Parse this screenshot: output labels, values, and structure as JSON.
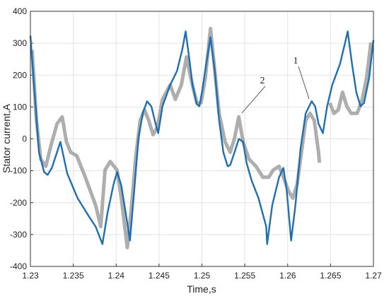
{
  "chart_data": {
    "type": "line",
    "xlabel": "Time,s",
    "ylabel": "Stator current,A",
    "xlim": [
      1.23,
      1.27
    ],
    "xticks": [
      1.23,
      1.235,
      1.24,
      1.245,
      1.25,
      1.255,
      1.26,
      1.265,
      1.27
    ],
    "ylim": [
      -400,
      400
    ],
    "yticks": [
      -400,
      -300,
      -200,
      -100,
      0,
      100,
      200,
      300,
      400
    ],
    "grid": true,
    "annotations": [
      "1",
      "2"
    ],
    "series": [
      {
        "color": "#a0a0a0",
        "x": [
          1.2302,
          1.2307,
          1.2312,
          1.2318,
          1.2324,
          1.2331,
          1.2337,
          1.2342,
          1.2347,
          1.2354,
          1.2364,
          1.2376,
          1.2382,
          1.2387,
          1.2393,
          1.2401,
          1.2406,
          1.2413,
          1.2418,
          1.2423,
          1.2428,
          1.2433,
          1.2438,
          1.2443,
          1.2448,
          1.2454,
          1.2463,
          1.2469,
          1.2476,
          1.2482,
          1.2487,
          1.2494,
          1.2499,
          1.2504,
          1.251,
          1.2515,
          1.252,
          1.2527,
          1.2533,
          1.2538,
          1.2543,
          1.2548,
          1.2555,
          1.2563,
          1.2571,
          1.2578,
          1.2583,
          1.259,
          1.2595,
          1.2601,
          1.2606,
          1.2611,
          1.2616,
          1.2621,
          1.2626,
          1.2631,
          1.2636,
          1.2637,
          1.2645,
          1.2649,
          1.2654,
          1.2659,
          1.2664,
          1.2669,
          1.2674,
          1.2681,
          1.2687,
          1.2692,
          1.2697
        ],
        "values": [
          279,
          58,
          -64,
          -86,
          -20,
          47,
          69,
          -9,
          -42,
          -53,
          -120,
          -208,
          -275,
          -98,
          -71,
          -98,
          -186,
          -341,
          -208,
          -53,
          58,
          91,
          58,
          13,
          36,
          124,
          169,
          124,
          169,
          257,
          191,
          113,
          113,
          191,
          346,
          213,
          80,
          -9,
          -42,
          2,
          69,
          -9,
          -64,
          -86,
          -120,
          -120,
          -98,
          -86,
          -120,
          -164,
          -186,
          -142,
          -42,
          58,
          80,
          58,
          -42,
          -75,
          null,
          113,
          80,
          91,
          146,
          102,
          80,
          80,
          124,
          191,
          302
        ]
      },
      {
        "color": "#1f6fb0",
        "x": [
          1.23,
          1.2306,
          1.231,
          1.2316,
          1.232,
          1.2325,
          1.2331,
          1.2335,
          1.2343,
          1.2355,
          1.2368,
          1.2376,
          1.2384,
          1.239,
          1.2397,
          1.2401,
          1.2406,
          1.2411,
          1.2416,
          1.2421,
          1.2426,
          1.2431,
          1.2436,
          1.2441,
          1.2446,
          1.2449,
          1.2454,
          1.2463,
          1.2471,
          1.2477,
          1.2481,
          1.2485,
          1.2489,
          1.2494,
          1.2497,
          1.25,
          1.2505,
          1.251,
          1.2515,
          1.252,
          1.2525,
          1.253,
          1.2533,
          1.2538,
          1.2543,
          1.2548,
          1.2552,
          1.2558,
          1.2566,
          1.2575,
          1.2576,
          1.2582,
          1.259,
          1.2595,
          1.2599,
          1.2604,
          1.2609,
          1.2615,
          1.2621,
          1.2628,
          1.2632,
          1.2636,
          1.2641,
          1.2646,
          1.2652,
          1.2661,
          1.2667,
          1.267,
          1.2675,
          1.268,
          1.2685,
          1.2689,
          1.2695,
          1.27
        ],
        "values": [
          324,
          102,
          -42,
          -104,
          -113,
          -91,
          -42,
          -9,
          -109,
          -186,
          -242,
          -275,
          -330,
          -231,
          -142,
          -104,
          -146,
          -231,
          -319,
          -164,
          2,
          80,
          118,
          102,
          47,
          18,
          102,
          169,
          213,
          279,
          337,
          257,
          169,
          109,
          102,
          146,
          235,
          319,
          213,
          58,
          -42,
          -86,
          -82,
          -42,
          0,
          -9,
          -75,
          -131,
          -186,
          -275,
          -330,
          -208,
          -120,
          -91,
          -164,
          -319,
          -208,
          -31,
          80,
          118,
          102,
          47,
          18,
          102,
          169,
          235,
          302,
          337,
          235,
          146,
          102,
          113,
          191,
          310
        ]
      }
    ]
  }
}
